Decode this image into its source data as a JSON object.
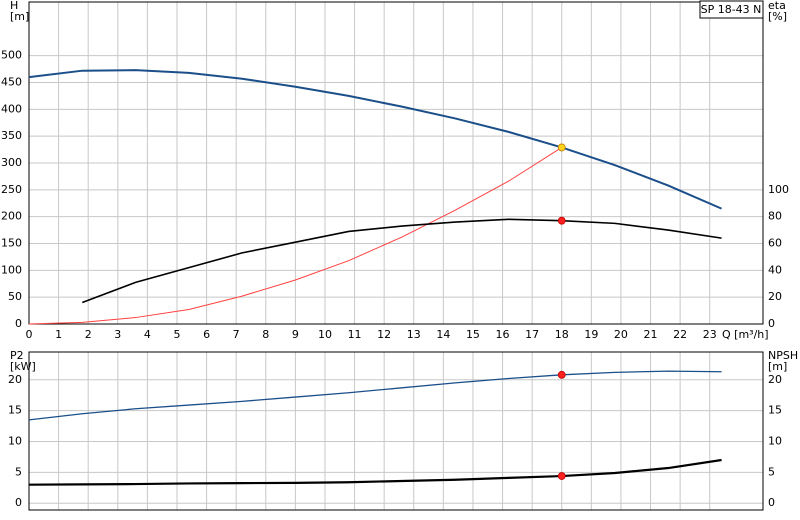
{
  "chart_data": [
    {
      "type": "line",
      "title": "SP 18-43 N",
      "xlabel": "Q [m³/h]",
      "ylabel": "H",
      "yunit": "[m]",
      "y2label": "eta",
      "y2unit": "[%]",
      "xlim": [
        0,
        24.8
      ],
      "xticks": [
        0,
        1,
        2,
        3,
        4,
        5,
        6,
        7,
        8,
        9,
        10,
        11,
        12,
        13,
        14,
        15,
        16,
        17,
        18,
        19,
        20,
        21,
        22,
        23
      ],
      "ylim": [
        0,
        600
      ],
      "yticks": [
        0,
        50,
        100,
        150,
        200,
        250,
        300,
        350,
        400,
        450,
        500
      ],
      "y2lim": [
        0,
        240
      ],
      "y2ticks": [
        0,
        20,
        40,
        60,
        80,
        100
      ],
      "grid": true,
      "marker_x": 18,
      "series": [
        {
          "color": "#1b4f8a",
          "width": 2,
          "marker": "#ffd21e",
          "x": [
            0,
            1.8,
            3.6,
            5.4,
            7.2,
            9,
            10.8,
            12.6,
            14.4,
            16.2,
            18,
            19.8,
            21.6,
            23.4
          ],
          "values": [
            460,
            472,
            473,
            468,
            457,
            442,
            425,
            405,
            383,
            358,
            329,
            296,
            258,
            215
          ]
        },
        {
          "color": "#ff4040",
          "width": 1,
          "x": [
            0,
            1.8,
            3.6,
            5.4,
            7.2,
            9,
            10.8,
            12.6,
            14.4,
            16.2,
            18
          ],
          "values": [
            0,
            3,
            12,
            27,
            52,
            82,
            118,
            162,
            212,
            266,
            329
          ]
        },
        {
          "color": "#000000",
          "width": 1.6,
          "axis": "y2",
          "marker": "#ff2020",
          "x": [
            1.8,
            3.6,
            5.4,
            7.2,
            9,
            10.8,
            12.6,
            14.4,
            16.2,
            18,
            19.8,
            21.6,
            23.4
          ],
          "values": [
            16,
            31,
            42,
            53,
            61,
            69,
            73,
            76,
            78,
            77,
            75,
            70,
            64
          ]
        }
      ]
    },
    {
      "type": "line",
      "ylabel": "P2",
      "yunit": "[kW]",
      "y2label": "NPSH",
      "y2unit": "[m]",
      "xlim": [
        0,
        24.8
      ],
      "xticks": [
        0,
        1,
        2,
        3,
        4,
        5,
        6,
        7,
        8,
        9,
        10,
        11,
        12,
        13,
        14,
        15,
        16,
        17,
        18,
        19,
        20,
        21,
        22,
        23
      ],
      "ylim": [
        -1.1,
        24.5
      ],
      "yticks": [
        0,
        5,
        10,
        15,
        20
      ],
      "y2lim": [
        -1.1,
        24.5
      ],
      "y2ticks": [
        0,
        5,
        10,
        15,
        20
      ],
      "grid": true,
      "marker_x": 18,
      "series": [
        {
          "color": "#1b4f8a",
          "width": 1.3,
          "marker": "#ff2020",
          "x": [
            0,
            1.8,
            3.6,
            5.4,
            7.2,
            9,
            10.8,
            12.6,
            14.4,
            16.2,
            18,
            19.8,
            21.6,
            23.4
          ],
          "values": [
            13.5,
            14.5,
            15.3,
            15.9,
            16.5,
            17.2,
            17.9,
            18.7,
            19.5,
            20.2,
            20.8,
            21.2,
            21.4,
            21.3
          ]
        },
        {
          "color": "#000000",
          "width": 2.2,
          "axis": "y2",
          "marker": "#ff2020",
          "x": [
            0,
            1.8,
            3.6,
            5.4,
            7.2,
            9,
            10.8,
            12.6,
            14.4,
            16.2,
            18,
            19.8,
            21.6,
            23.4
          ],
          "values": [
            3,
            3.05,
            3.1,
            3.2,
            3.25,
            3.3,
            3.4,
            3.6,
            3.8,
            4.1,
            4.4,
            4.9,
            5.7,
            7.0
          ]
        }
      ]
    }
  ]
}
